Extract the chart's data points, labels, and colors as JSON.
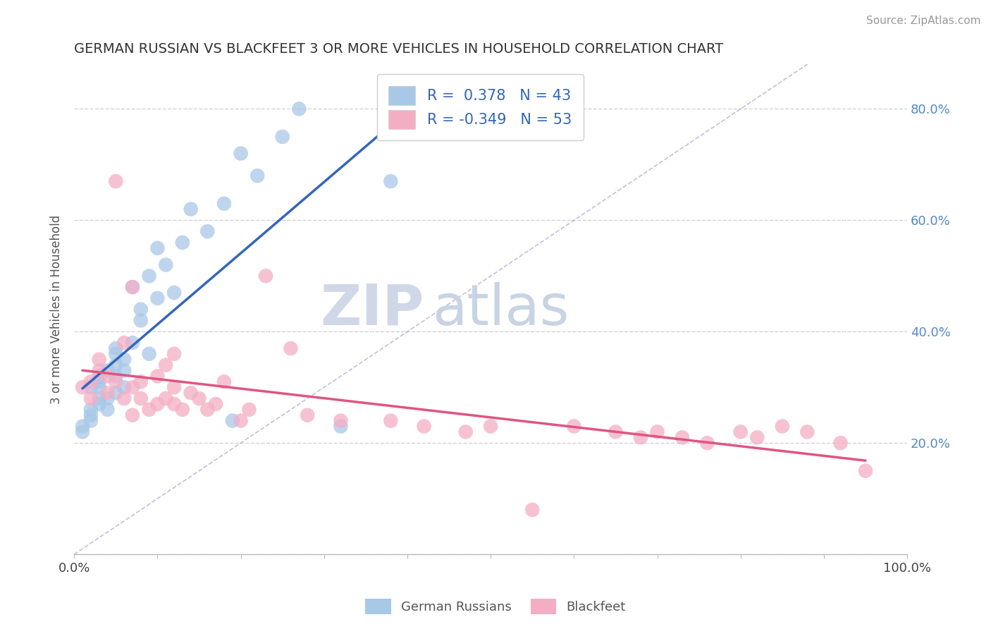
{
  "title": "GERMAN RUSSIAN VS BLACKFEET 3 OR MORE VEHICLES IN HOUSEHOLD CORRELATION CHART",
  "source": "Source: ZipAtlas.com",
  "ylabel": "3 or more Vehicles in Household",
  "blue_R": "0.378",
  "blue_N": "43",
  "pink_R": "-0.349",
  "pink_N": "53",
  "blue_color": "#a8c8e8",
  "pink_color": "#f4aec4",
  "blue_line_color": "#3366bb",
  "pink_line_color": "#e05580",
  "title_color": "#333333",
  "legend_text_color": "#3366bb",
  "watermark_zip": "ZIP",
  "watermark_atlas": "atlas",
  "grid_color": "#ccccdd",
  "blue_x": [
    0.01,
    0.01,
    0.02,
    0.02,
    0.02,
    0.02,
    0.03,
    0.03,
    0.03,
    0.03,
    0.03,
    0.04,
    0.04,
    0.04,
    0.05,
    0.05,
    0.05,
    0.05,
    0.05,
    0.06,
    0.06,
    0.06,
    0.07,
    0.07,
    0.08,
    0.08,
    0.09,
    0.09,
    0.1,
    0.1,
    0.11,
    0.12,
    0.13,
    0.14,
    0.16,
    0.18,
    0.2,
    0.22,
    0.25,
    0.27,
    0.19,
    0.32,
    0.38
  ],
  "blue_y": [
    0.22,
    0.23,
    0.24,
    0.25,
    0.26,
    0.3,
    0.27,
    0.28,
    0.3,
    0.31,
    0.32,
    0.26,
    0.28,
    0.33,
    0.29,
    0.32,
    0.34,
    0.36,
    0.37,
    0.3,
    0.33,
    0.35,
    0.38,
    0.48,
    0.42,
    0.44,
    0.36,
    0.5,
    0.46,
    0.55,
    0.52,
    0.47,
    0.56,
    0.62,
    0.58,
    0.63,
    0.72,
    0.68,
    0.75,
    0.8,
    0.24,
    0.23,
    0.67
  ],
  "pink_x": [
    0.01,
    0.02,
    0.02,
    0.03,
    0.03,
    0.04,
    0.04,
    0.05,
    0.05,
    0.06,
    0.06,
    0.07,
    0.07,
    0.07,
    0.08,
    0.08,
    0.09,
    0.1,
    0.1,
    0.11,
    0.11,
    0.12,
    0.12,
    0.12,
    0.13,
    0.14,
    0.15,
    0.16,
    0.17,
    0.18,
    0.2,
    0.21,
    0.23,
    0.26,
    0.28,
    0.32,
    0.38,
    0.42,
    0.47,
    0.5,
    0.55,
    0.6,
    0.65,
    0.68,
    0.7,
    0.73,
    0.76,
    0.8,
    0.82,
    0.85,
    0.88,
    0.92,
    0.95
  ],
  "pink_y": [
    0.3,
    0.28,
    0.31,
    0.33,
    0.35,
    0.29,
    0.32,
    0.31,
    0.67,
    0.28,
    0.38,
    0.25,
    0.3,
    0.48,
    0.28,
    0.31,
    0.26,
    0.27,
    0.32,
    0.28,
    0.34,
    0.27,
    0.3,
    0.36,
    0.26,
    0.29,
    0.28,
    0.26,
    0.27,
    0.31,
    0.24,
    0.26,
    0.5,
    0.37,
    0.25,
    0.24,
    0.24,
    0.23,
    0.22,
    0.23,
    0.08,
    0.23,
    0.22,
    0.21,
    0.22,
    0.21,
    0.2,
    0.22,
    0.21,
    0.23,
    0.22,
    0.2,
    0.15
  ]
}
